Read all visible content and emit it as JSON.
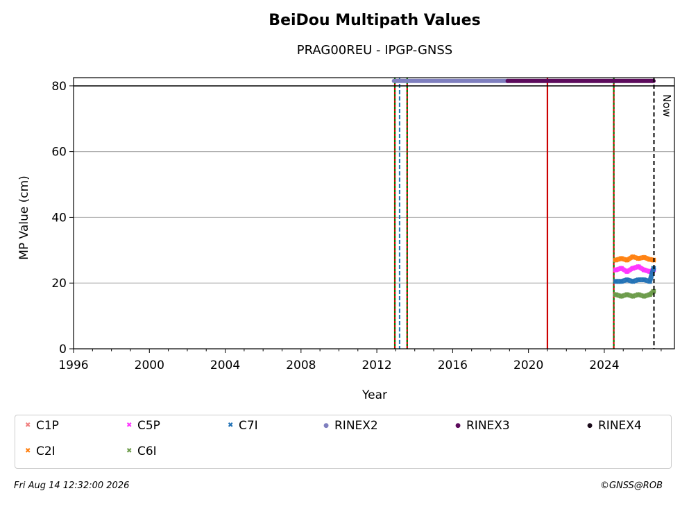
{
  "header": {
    "title": "BeiDou Multipath Values",
    "subtitle": "PRAG00REU - IPGP-GNSS"
  },
  "footer": {
    "timestamp": "Fri Aug 14 12:32:00 2026",
    "credit": "©GNSS@ROB"
  },
  "chart_data": {
    "type": "scatter",
    "xlabel": "Year",
    "ylabel": "MP Value (cm)",
    "xlim": [
      1996,
      2027.7
    ],
    "ylim": [
      0,
      82.5
    ],
    "xticks": [
      1996,
      2000,
      2004,
      2008,
      2012,
      2016,
      2020,
      2024
    ],
    "yticks": [
      0,
      20,
      40,
      60,
      80
    ],
    "grid": "horizontal",
    "legend_placement": "below",
    "now_label": "Now",
    "now_x": 2026.62,
    "series": [
      {
        "name": "C1P",
        "color": "#f08080",
        "marker": "x",
        "x": [],
        "y": []
      },
      {
        "name": "C2I",
        "color": "#ff7f0e",
        "marker": "x",
        "x": [
          2024.6,
          2024.9,
          2025.2,
          2025.5,
          2025.8,
          2026.1,
          2026.4,
          2026.6
        ],
        "y": [
          27,
          27.5,
          27,
          28,
          27.5,
          27.8,
          27.2,
          27
        ]
      },
      {
        "name": "C5P",
        "color": "#ff33ff",
        "marker": "x",
        "x": [
          2024.6,
          2024.9,
          2025.2,
          2025.5,
          2025.8,
          2026.1,
          2026.4,
          2026.6
        ],
        "y": [
          24,
          24.5,
          23.5,
          24.5,
          25,
          24,
          23.5,
          24
        ]
      },
      {
        "name": "C6I",
        "color": "#6a9a48",
        "marker": "x",
        "x": [
          2024.6,
          2024.9,
          2025.2,
          2025.5,
          2025.8,
          2026.1,
          2026.4,
          2026.6
        ],
        "y": [
          16.5,
          16,
          16.5,
          16,
          16.5,
          16,
          16.5,
          17.5
        ]
      },
      {
        "name": "C7I",
        "color": "#2171b5",
        "marker": "x",
        "x": [
          2024.6,
          2024.9,
          2025.2,
          2025.5,
          2025.8,
          2026.1,
          2026.4,
          2026.6
        ],
        "y": [
          20.5,
          20.5,
          21,
          20.5,
          21,
          21,
          20.5,
          24.5
        ]
      },
      {
        "name": "RINEX2",
        "color": "#7f7fbf",
        "marker": "dot",
        "x_range": [
          2012.9,
          2018.9
        ],
        "y": 81.5
      },
      {
        "name": "RINEX3",
        "color": "#5c0a5c",
        "marker": "dot",
        "x_range": [
          2018.9,
          2026.6
        ],
        "y": 81.5
      },
      {
        "name": "RINEX4",
        "color": "#1a0a1a",
        "marker": "dot",
        "x_range": [],
        "y": 81.5
      }
    ],
    "legend_order": [
      "C1P",
      "C5P",
      "C7I",
      "RINEX2",
      "RINEX3",
      "RINEX4",
      "C2I",
      "C6I"
    ],
    "vertical_lines": [
      {
        "x": 2012.95,
        "style": "red-green-dashed"
      },
      {
        "x": 2013.2,
        "style": "blue-dashed"
      },
      {
        "x": 2013.6,
        "style": "red-green-dashed"
      },
      {
        "x": 2021.0,
        "style": "red-solid"
      },
      {
        "x": 2024.5,
        "style": "red-green-dashed"
      }
    ],
    "colors": {
      "red": "#cc0000",
      "green": "#008000",
      "blue": "#1f77b4",
      "grid": "#b0b0b0"
    }
  }
}
